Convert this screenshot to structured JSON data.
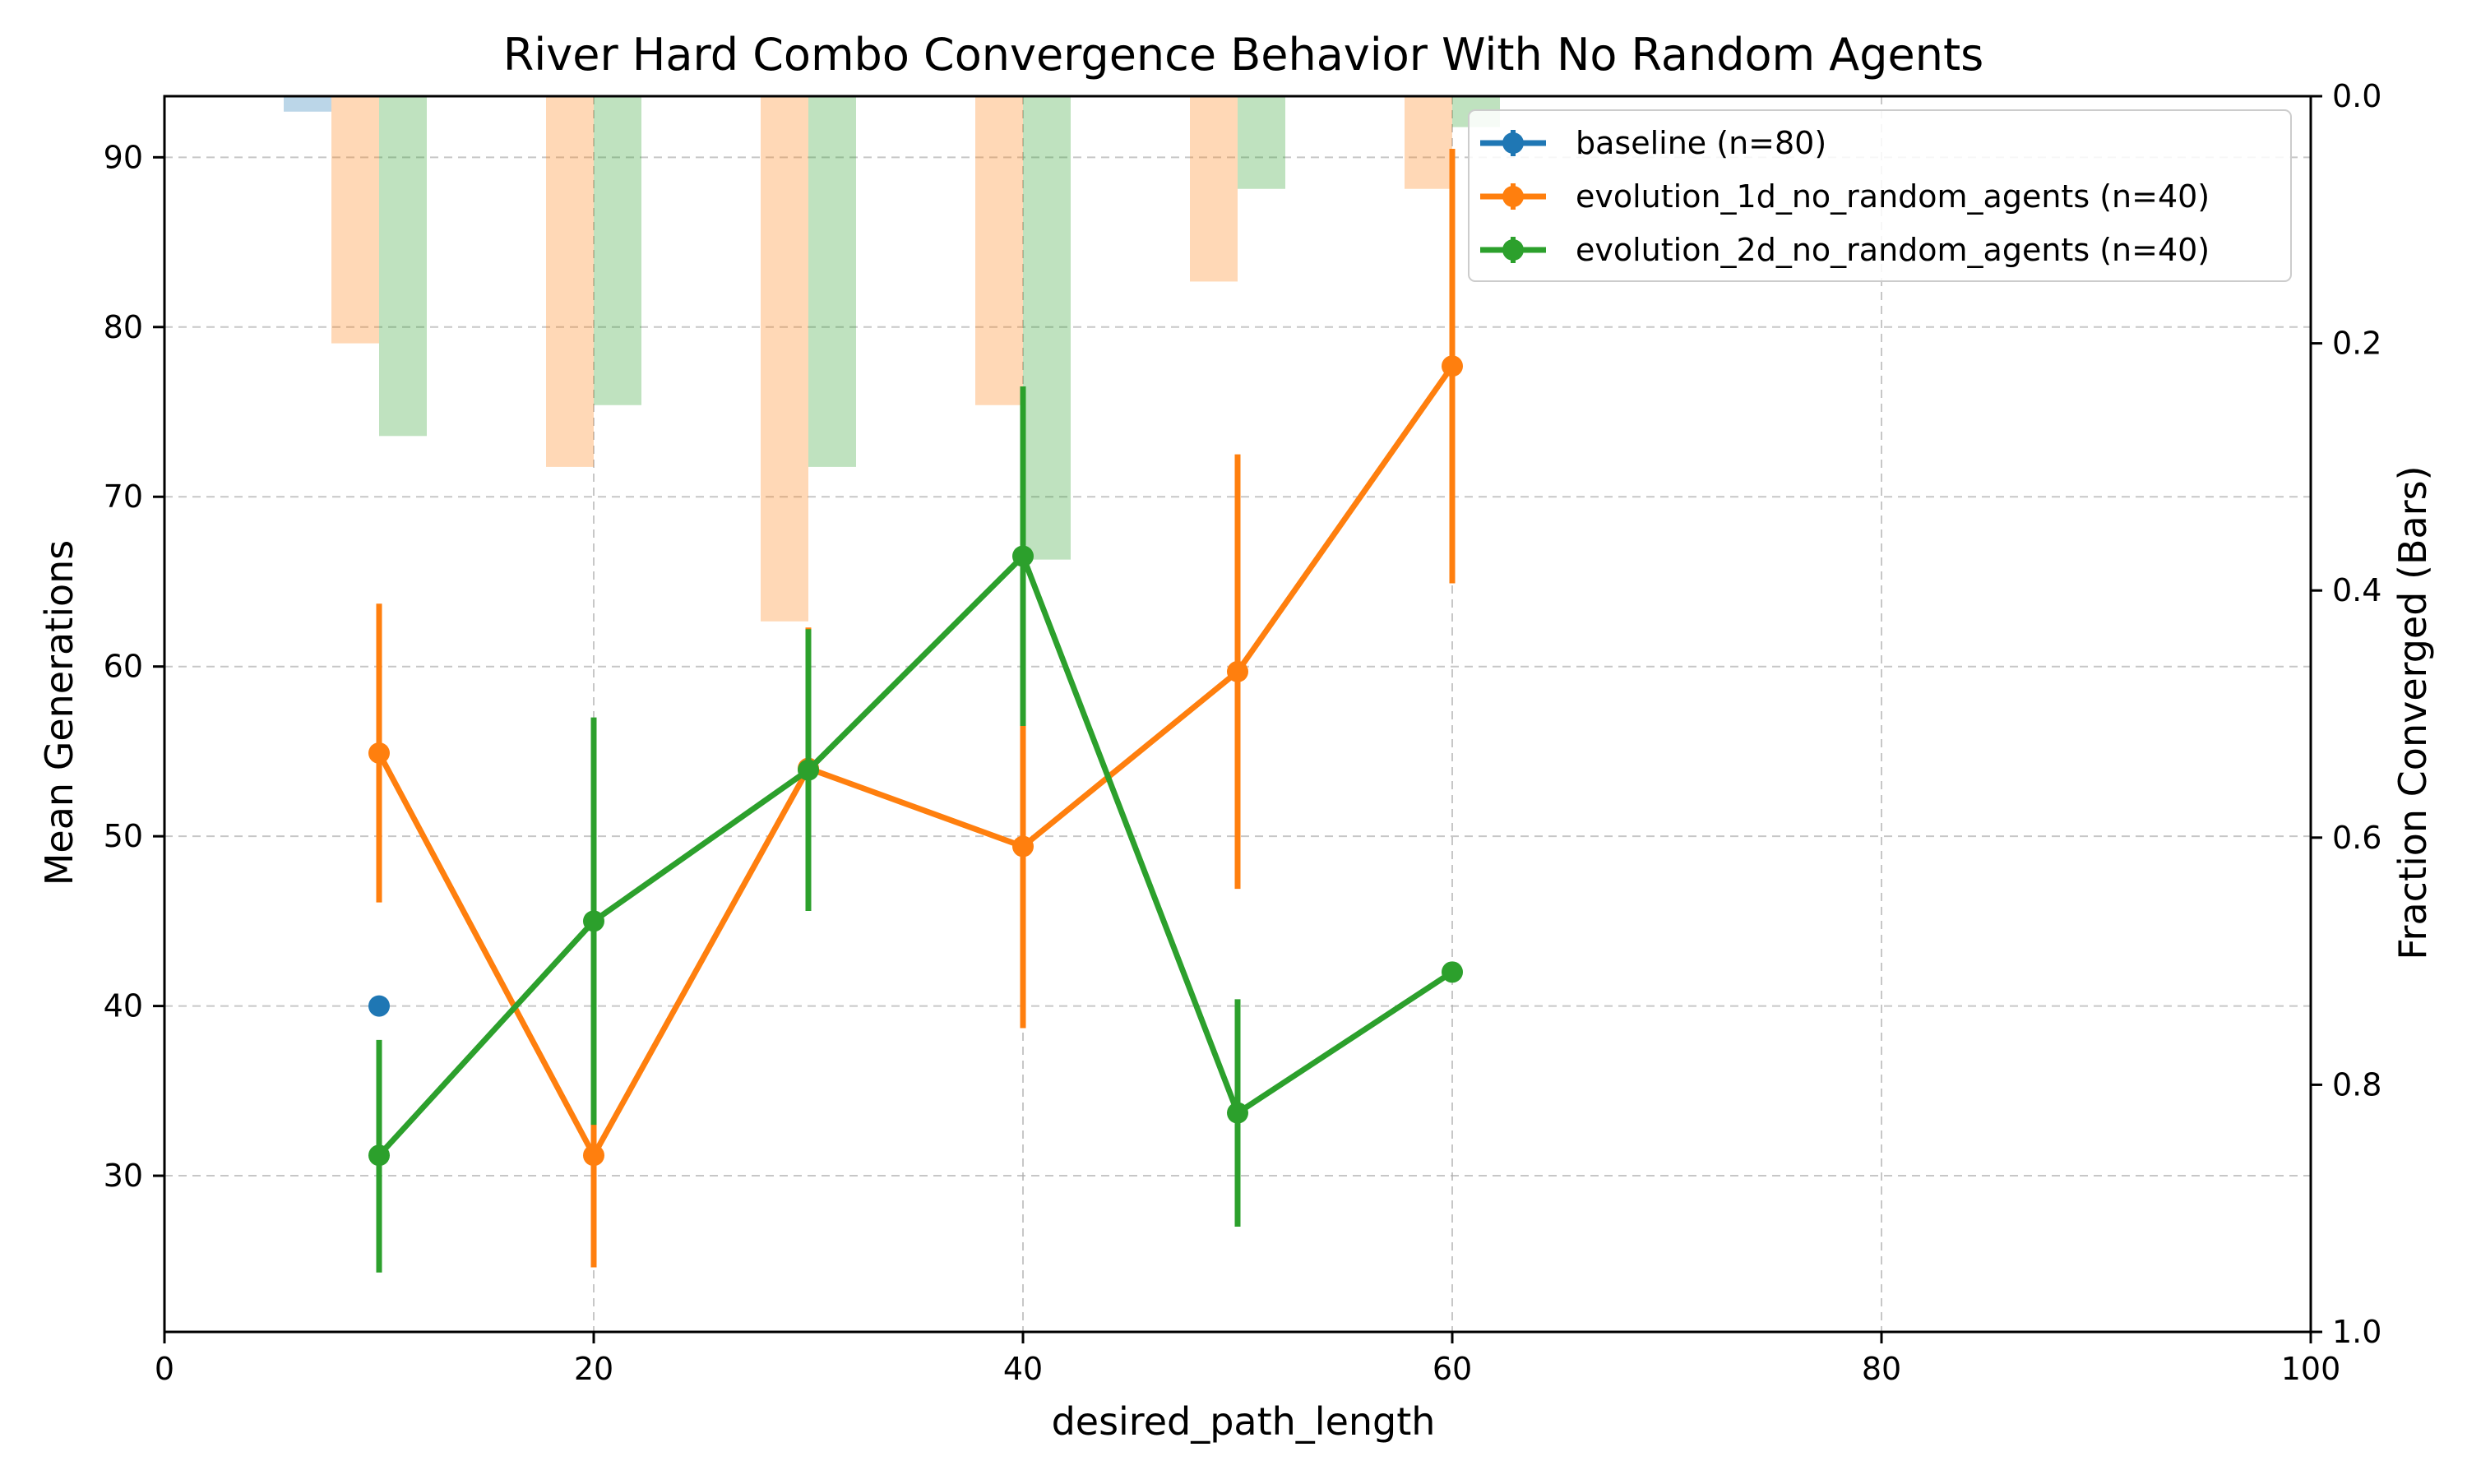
{
  "chart_data": {
    "type": "line",
    "title": "River Hard Combo Convergence Behavior With No Random Agents",
    "xlabel": "desired_path_length",
    "ylabel": "Mean Generations",
    "y2label": "Fraction Converged (Bars)",
    "xlim": [
      0,
      100
    ],
    "ylim": [
      20.8,
      93.6
    ],
    "y2lim": [
      1.0,
      0.0
    ],
    "y2_inverted": true,
    "x_ticks": [
      "0",
      "20",
      "40",
      "60",
      "80",
      "100"
    ],
    "y_ticks": [
      "30",
      "40",
      "50",
      "60",
      "70",
      "80",
      "90"
    ],
    "y2_ticks": [
      "0.0",
      "0.2",
      "0.4",
      "0.6",
      "0.8",
      "1.0"
    ],
    "grid": true,
    "legend_position": "top-right",
    "series": [
      {
        "name": "baseline (n=80)",
        "color": "#1f77b4",
        "x": [
          10
        ],
        "mean": [
          40.0
        ],
        "err_low": [
          40.0
        ],
        "err_high": [
          40.0
        ],
        "fraction_converged": [
          0.0125
        ]
      },
      {
        "name": "evolution_1d_no_random_agents (n=40)",
        "color": "#ff7f0e",
        "x": [
          10,
          20,
          30,
          40,
          50,
          60
        ],
        "mean": [
          54.9,
          31.2,
          54.0,
          49.4,
          59.7,
          77.7
        ],
        "err_low": [
          46.1,
          24.6,
          45.7,
          38.7,
          46.9,
          64.9
        ],
        "err_high": [
          63.7,
          37.8,
          62.3,
          60.1,
          72.5,
          90.5
        ],
        "fraction_converged": [
          0.2,
          0.3,
          0.425,
          0.25,
          0.15,
          0.075
        ]
      },
      {
        "name": "evolution_2d_no_random_agents (n=40)",
        "color": "#2ca02c",
        "x": [
          10,
          20,
          30,
          40,
          50,
          60
        ],
        "mean": [
          31.2,
          45.0,
          53.9,
          66.5,
          33.7,
          42.0
        ],
        "err_low": [
          24.3,
          33.0,
          45.6,
          56.5,
          27.0,
          42.0
        ],
        "err_high": [
          38.0,
          57.0,
          62.2,
          76.5,
          40.4,
          42.0
        ],
        "fraction_converged": [
          0.275,
          0.25,
          0.3,
          0.375,
          0.075,
          0.025
        ]
      }
    ]
  }
}
